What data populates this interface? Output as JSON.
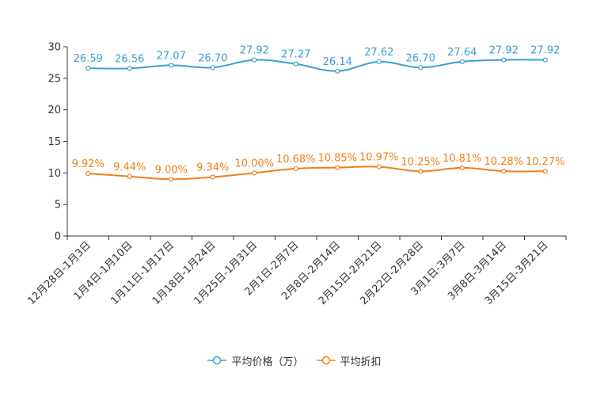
{
  "chart_data": {
    "type": "line",
    "title": "",
    "xlabel": "",
    "ylabel": "",
    "ylim": [
      0,
      30
    ],
    "yticks": [
      0,
      5,
      10,
      15,
      20,
      25,
      30
    ],
    "categories": [
      "12月28日-1月3日",
      "1月4日-1月10日",
      "1月11日-1月17日",
      "1月18日-1月24日",
      "1月25日-1月31日",
      "2月1日-2月7日",
      "2月8日-2月14日",
      "2月15日-2月21日",
      "2月22日-2月28日",
      "3月1日-3月7日",
      "3月8日-3月14日",
      "3月15日-3月21日"
    ],
    "series": [
      {
        "name": "平均价格（万）",
        "color": "#3a9fd0",
        "values": [
          26.59,
          26.56,
          27.07,
          26.7,
          27.92,
          27.27,
          26.14,
          27.62,
          26.7,
          27.64,
          27.92,
          27.92
        ],
        "labels": [
          "26.59",
          "26.56",
          "27.07",
          "26.70",
          "27.92",
          "27.27",
          "26.14",
          "27.62",
          "26.70",
          "27.64",
          "27.92",
          "27.92"
        ]
      },
      {
        "name": "平均折扣",
        "color": "#f07f1a",
        "values": [
          9.92,
          9.44,
          9.0,
          9.34,
          10.0,
          10.68,
          10.85,
          10.97,
          10.25,
          10.81,
          10.28,
          10.27
        ],
        "labels": [
          "9.92%",
          "9.44%",
          "9.00%",
          "9.34%",
          "10.00%",
          "10.68%",
          "10.85%",
          "10.97%",
          "10.25%",
          "10.81%",
          "10.28%",
          "10.27%"
        ]
      }
    ],
    "grid": false,
    "legend_position": "bottom-center"
  }
}
